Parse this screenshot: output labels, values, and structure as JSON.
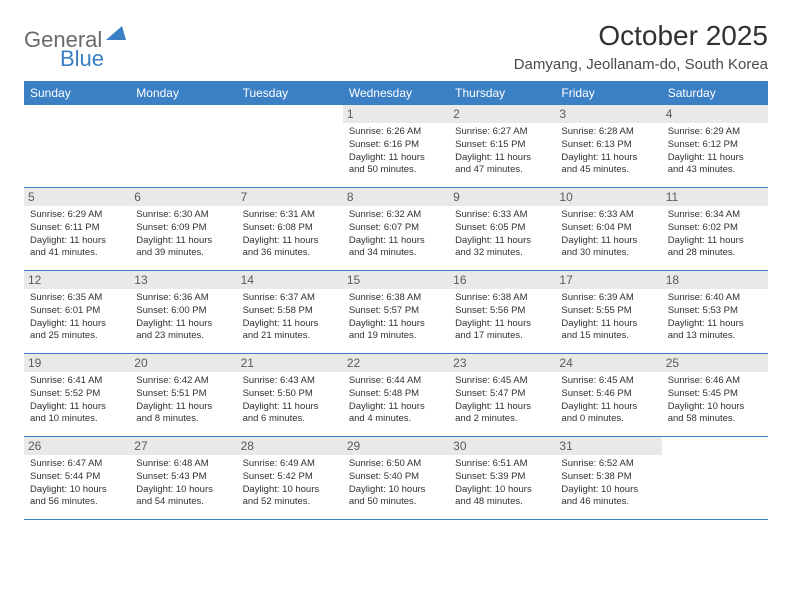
{
  "logo": {
    "text1": "General",
    "text2": "Blue"
  },
  "title": "October 2025",
  "location": "Damyang, Jeollanam-do, South Korea",
  "colors": {
    "header_bg": "#3b7fc4",
    "header_text": "#ffffff",
    "daynum_bg": "#e9e9e9",
    "daynum_text": "#5a5a5a",
    "text": "#313131",
    "logo_gray": "#6a6a6a",
    "logo_blue": "#3b7fc4",
    "border": "#3b7fc4"
  },
  "day_names": [
    "Sunday",
    "Monday",
    "Tuesday",
    "Wednesday",
    "Thursday",
    "Friday",
    "Saturday"
  ],
  "weeks": [
    [
      {
        "n": "",
        "sr": "",
        "ss": "",
        "dl": ""
      },
      {
        "n": "",
        "sr": "",
        "ss": "",
        "dl": ""
      },
      {
        "n": "",
        "sr": "",
        "ss": "",
        "dl": ""
      },
      {
        "n": "1",
        "sr": "Sunrise: 6:26 AM",
        "ss": "Sunset: 6:16 PM",
        "dl": "Daylight: 11 hours and 50 minutes."
      },
      {
        "n": "2",
        "sr": "Sunrise: 6:27 AM",
        "ss": "Sunset: 6:15 PM",
        "dl": "Daylight: 11 hours and 47 minutes."
      },
      {
        "n": "3",
        "sr": "Sunrise: 6:28 AM",
        "ss": "Sunset: 6:13 PM",
        "dl": "Daylight: 11 hours and 45 minutes."
      },
      {
        "n": "4",
        "sr": "Sunrise: 6:29 AM",
        "ss": "Sunset: 6:12 PM",
        "dl": "Daylight: 11 hours and 43 minutes."
      }
    ],
    [
      {
        "n": "5",
        "sr": "Sunrise: 6:29 AM",
        "ss": "Sunset: 6:11 PM",
        "dl": "Daylight: 11 hours and 41 minutes."
      },
      {
        "n": "6",
        "sr": "Sunrise: 6:30 AM",
        "ss": "Sunset: 6:09 PM",
        "dl": "Daylight: 11 hours and 39 minutes."
      },
      {
        "n": "7",
        "sr": "Sunrise: 6:31 AM",
        "ss": "Sunset: 6:08 PM",
        "dl": "Daylight: 11 hours and 36 minutes."
      },
      {
        "n": "8",
        "sr": "Sunrise: 6:32 AM",
        "ss": "Sunset: 6:07 PM",
        "dl": "Daylight: 11 hours and 34 minutes."
      },
      {
        "n": "9",
        "sr": "Sunrise: 6:33 AM",
        "ss": "Sunset: 6:05 PM",
        "dl": "Daylight: 11 hours and 32 minutes."
      },
      {
        "n": "10",
        "sr": "Sunrise: 6:33 AM",
        "ss": "Sunset: 6:04 PM",
        "dl": "Daylight: 11 hours and 30 minutes."
      },
      {
        "n": "11",
        "sr": "Sunrise: 6:34 AM",
        "ss": "Sunset: 6:02 PM",
        "dl": "Daylight: 11 hours and 28 minutes."
      }
    ],
    [
      {
        "n": "12",
        "sr": "Sunrise: 6:35 AM",
        "ss": "Sunset: 6:01 PM",
        "dl": "Daylight: 11 hours and 25 minutes."
      },
      {
        "n": "13",
        "sr": "Sunrise: 6:36 AM",
        "ss": "Sunset: 6:00 PM",
        "dl": "Daylight: 11 hours and 23 minutes."
      },
      {
        "n": "14",
        "sr": "Sunrise: 6:37 AM",
        "ss": "Sunset: 5:58 PM",
        "dl": "Daylight: 11 hours and 21 minutes."
      },
      {
        "n": "15",
        "sr": "Sunrise: 6:38 AM",
        "ss": "Sunset: 5:57 PM",
        "dl": "Daylight: 11 hours and 19 minutes."
      },
      {
        "n": "16",
        "sr": "Sunrise: 6:38 AM",
        "ss": "Sunset: 5:56 PM",
        "dl": "Daylight: 11 hours and 17 minutes."
      },
      {
        "n": "17",
        "sr": "Sunrise: 6:39 AM",
        "ss": "Sunset: 5:55 PM",
        "dl": "Daylight: 11 hours and 15 minutes."
      },
      {
        "n": "18",
        "sr": "Sunrise: 6:40 AM",
        "ss": "Sunset: 5:53 PM",
        "dl": "Daylight: 11 hours and 13 minutes."
      }
    ],
    [
      {
        "n": "19",
        "sr": "Sunrise: 6:41 AM",
        "ss": "Sunset: 5:52 PM",
        "dl": "Daylight: 11 hours and 10 minutes."
      },
      {
        "n": "20",
        "sr": "Sunrise: 6:42 AM",
        "ss": "Sunset: 5:51 PM",
        "dl": "Daylight: 11 hours and 8 minutes."
      },
      {
        "n": "21",
        "sr": "Sunrise: 6:43 AM",
        "ss": "Sunset: 5:50 PM",
        "dl": "Daylight: 11 hours and 6 minutes."
      },
      {
        "n": "22",
        "sr": "Sunrise: 6:44 AM",
        "ss": "Sunset: 5:48 PM",
        "dl": "Daylight: 11 hours and 4 minutes."
      },
      {
        "n": "23",
        "sr": "Sunrise: 6:45 AM",
        "ss": "Sunset: 5:47 PM",
        "dl": "Daylight: 11 hours and 2 minutes."
      },
      {
        "n": "24",
        "sr": "Sunrise: 6:45 AM",
        "ss": "Sunset: 5:46 PM",
        "dl": "Daylight: 11 hours and 0 minutes."
      },
      {
        "n": "25",
        "sr": "Sunrise: 6:46 AM",
        "ss": "Sunset: 5:45 PM",
        "dl": "Daylight: 10 hours and 58 minutes."
      }
    ],
    [
      {
        "n": "26",
        "sr": "Sunrise: 6:47 AM",
        "ss": "Sunset: 5:44 PM",
        "dl": "Daylight: 10 hours and 56 minutes."
      },
      {
        "n": "27",
        "sr": "Sunrise: 6:48 AM",
        "ss": "Sunset: 5:43 PM",
        "dl": "Daylight: 10 hours and 54 minutes."
      },
      {
        "n": "28",
        "sr": "Sunrise: 6:49 AM",
        "ss": "Sunset: 5:42 PM",
        "dl": "Daylight: 10 hours and 52 minutes."
      },
      {
        "n": "29",
        "sr": "Sunrise: 6:50 AM",
        "ss": "Sunset: 5:40 PM",
        "dl": "Daylight: 10 hours and 50 minutes."
      },
      {
        "n": "30",
        "sr": "Sunrise: 6:51 AM",
        "ss": "Sunset: 5:39 PM",
        "dl": "Daylight: 10 hours and 48 minutes."
      },
      {
        "n": "31",
        "sr": "Sunrise: 6:52 AM",
        "ss": "Sunset: 5:38 PM",
        "dl": "Daylight: 10 hours and 46 minutes."
      },
      {
        "n": "",
        "sr": "",
        "ss": "",
        "dl": ""
      }
    ]
  ]
}
